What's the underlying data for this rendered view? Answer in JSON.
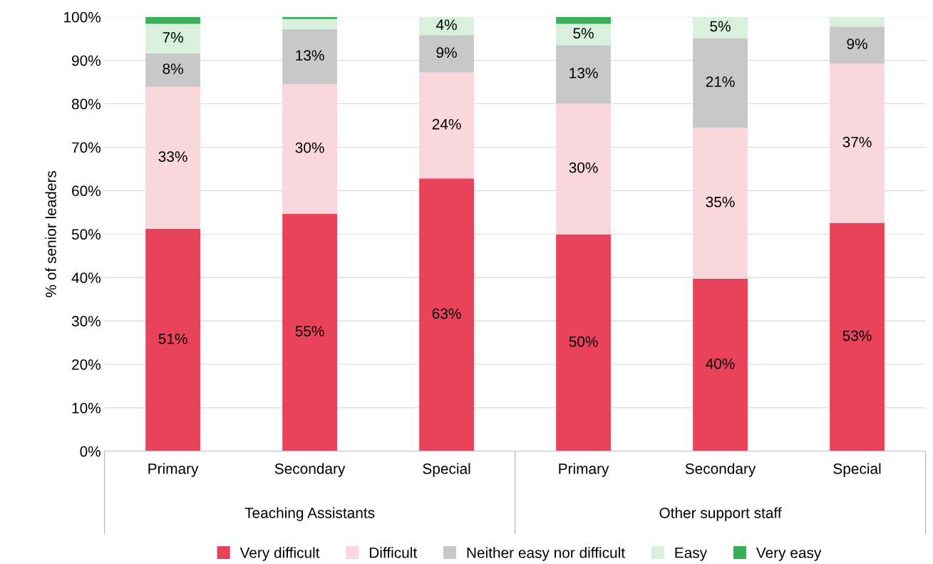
{
  "chart_data": {
    "type": "bar",
    "stacked": true,
    "ylabel": "% of senior leaders",
    "categories": [
      "Primary",
      "Secondary",
      "Special",
      "Primary",
      "Secondary",
      "Special"
    ],
    "annotations": [
      "Teaching Assistants",
      "Other support staff"
    ],
    "series": [
      {
        "name": "Very difficult",
        "color": "#e8435a",
        "values": [
          51.2,
          54.7,
          62.8,
          49.9,
          39.7,
          52.6
        ],
        "value_labels": [
          "51%",
          "55%",
          "63%",
          "50%",
          "40%",
          "53%"
        ]
      },
      {
        "name": "Difficult",
        "color": "#fad7dd",
        "values": [
          32.7,
          29.8,
          24.4,
          30.2,
          34.8,
          36.6
        ],
        "value_labels": [
          "33%",
          "30%",
          "24%",
          "30%",
          "35%",
          "37%"
        ]
      },
      {
        "name": "Neither easy nor difficult",
        "color": "#c8c8c8",
        "values": [
          7.7,
          12.7,
          8.6,
          13.4,
          20.6,
          8.6
        ],
        "value_labels": [
          "8%",
          "13%",
          "9%",
          "13%",
          "21%",
          "9%"
        ]
      },
      {
        "name": "Easy",
        "color": "#d8f0dc",
        "values": [
          6.8,
          2.3,
          4.2,
          4.9,
          4.9,
          2.2
        ],
        "value_labels": [
          "7%",
          null,
          "4%",
          "5%",
          "5%",
          null
        ]
      },
      {
        "name": "Very easy",
        "color": "#3aae5a",
        "values": [
          1.6,
          0.5,
          0,
          1.6,
          0,
          0
        ],
        "value_labels": [
          null,
          null,
          null,
          null,
          null,
          null
        ]
      }
    ],
    "ylim": [
      0,
      100
    ],
    "yticks": [
      {
        "value": 0,
        "label": "0%"
      },
      {
        "value": 10,
        "label": "10%"
      },
      {
        "value": 20,
        "label": "20%"
      },
      {
        "value": 30,
        "label": "30%"
      },
      {
        "value": 40,
        "label": "40%"
      },
      {
        "value": 50,
        "label": "50%"
      },
      {
        "value": 60,
        "label": "60%"
      },
      {
        "value": 70,
        "label": "70%"
      },
      {
        "value": 80,
        "label": "80%"
      },
      {
        "value": 90,
        "label": "90%"
      },
      {
        "value": 100,
        "label": "100%"
      }
    ],
    "grid": "y",
    "legend": "bottom"
  }
}
